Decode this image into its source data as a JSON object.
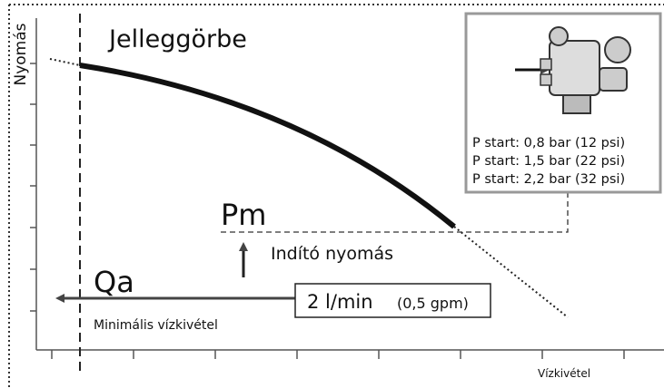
{
  "y_axis_label": "Nyomás",
  "title": "Jelleggörbe",
  "pm_label": "Pm",
  "start_pressure_label": "Indító nyomás",
  "qa_label": "Qa",
  "min_flow_label": "Minimális vízkivétel",
  "flow_value": "2 l/min",
  "flow_value_alt": "(0,5 gpm)",
  "x_axis_label": "Vízkivétel",
  "inset": {
    "lines": [
      "P start: 0,8 bar (12 psi)",
      "P start: 1,5 bar (22 psi)",
      "P start: 2,2 bar (32 psi)"
    ]
  }
}
